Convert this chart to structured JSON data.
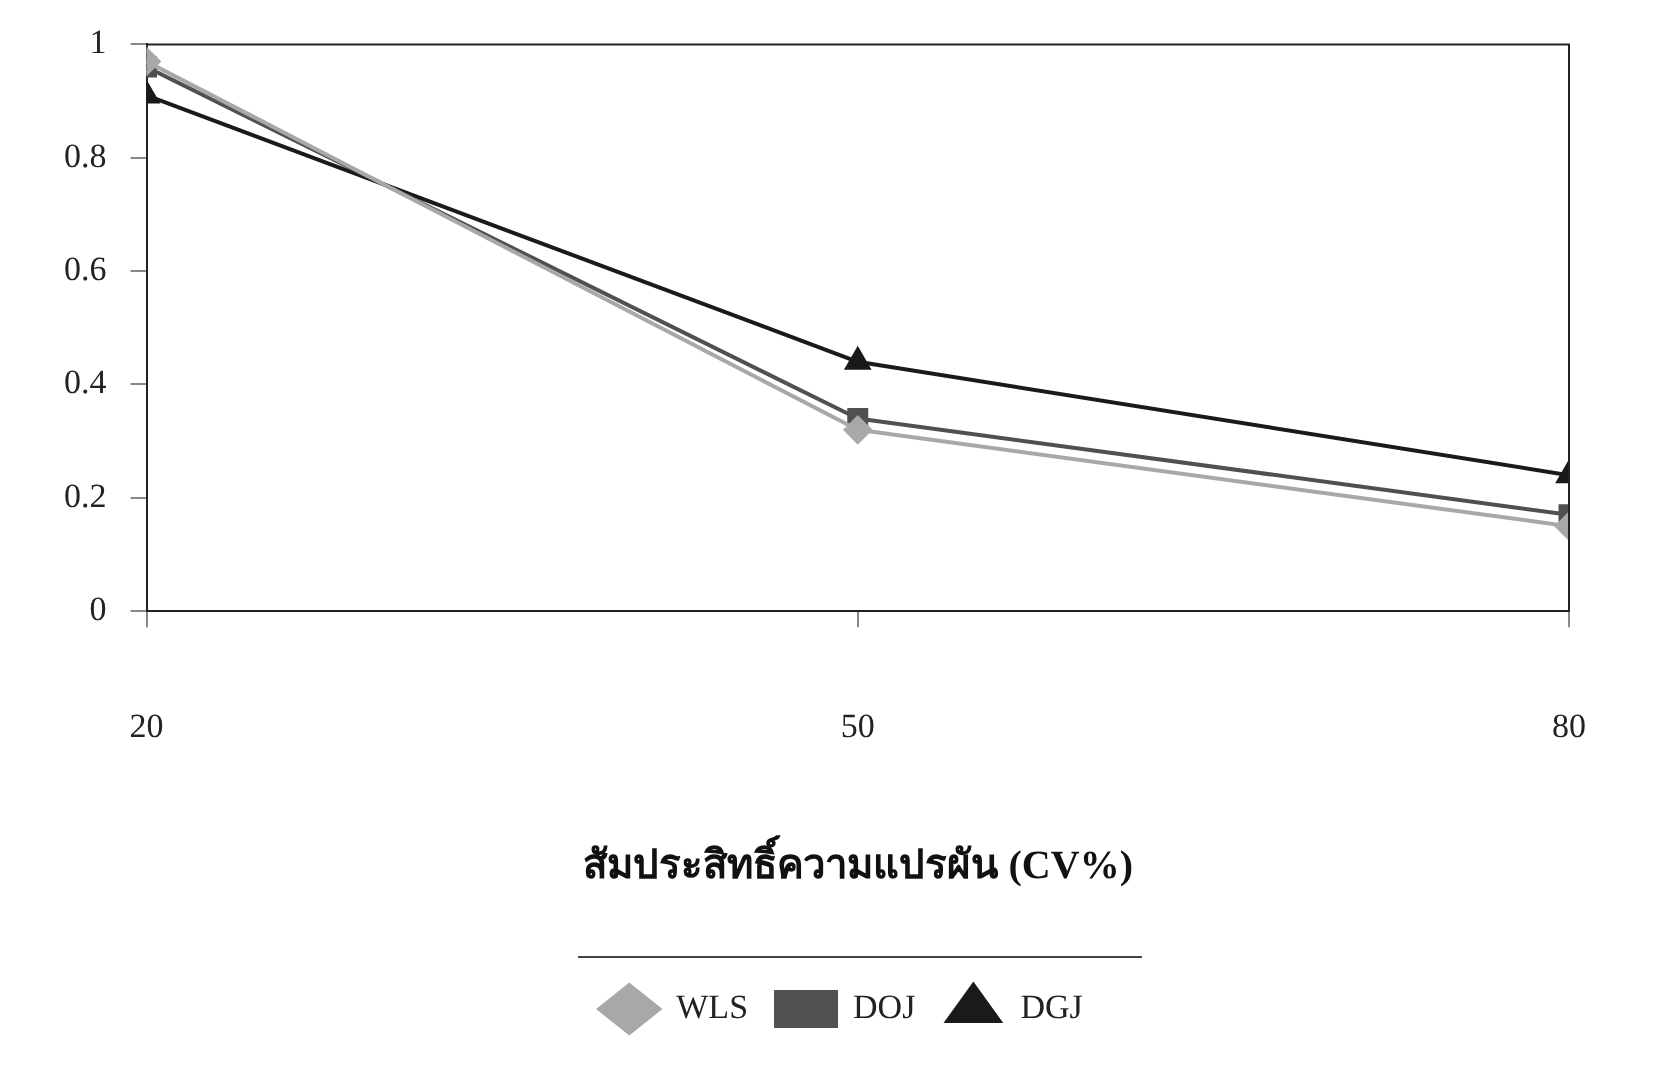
{
  "chart_data": {
    "type": "line",
    "xlabel": "สัมประสิทธิ์ความแปรผัน (CV%)",
    "x": [
      20,
      50,
      80
    ],
    "xlim": [
      20,
      80
    ],
    "xticks": [
      20,
      50,
      80
    ],
    "ylim": [
      0,
      1
    ],
    "yticks": [
      0,
      0.2,
      0.4,
      0.6,
      0.8,
      1
    ],
    "grid": false,
    "legend": "bottom",
    "line_style": "solid",
    "series": [
      {
        "name": "WLS",
        "color": "#a8a8a8",
        "marker": "diamond",
        "values": [
          0.97,
          0.32,
          0.15
        ]
      },
      {
        "name": "DOJ",
        "color": "#505050",
        "marker": "square",
        "values": [
          0.96,
          0.34,
          0.17
        ]
      },
      {
        "name": "DGJ",
        "color": "#1a1a1a",
        "marker": "triangle",
        "values": [
          0.91,
          0.44,
          0.24
        ]
      }
    ]
  }
}
